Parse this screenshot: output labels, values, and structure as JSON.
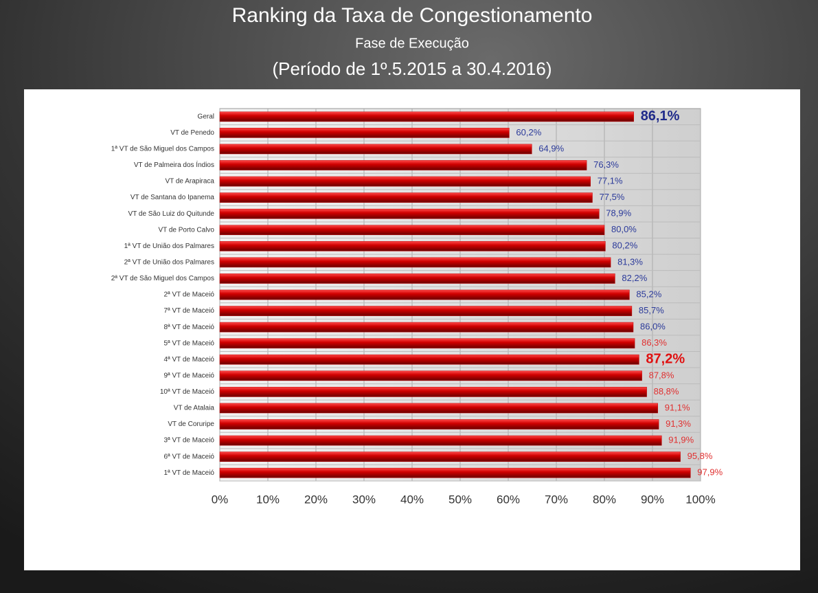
{
  "chart_data": {
    "type": "bar",
    "orientation": "horizontal",
    "title": "Ranking da Taxa de Congestionamento",
    "subtitle": "Fase de Execução",
    "period": "(Período de 1º.5.2015  a  30.4.2016)",
    "categories": [
      "Geral",
      "VT de Penedo",
      "1ª VT de São Miguel dos Campos",
      "VT de Palmeira dos Índios",
      "VT de Arapiraca",
      "VT de Santana do Ipanema",
      "VT de São Luiz do Quitunde",
      "VT de Porto Calvo",
      "1ª VT de União dos Palmares",
      "2ª VT de União dos Palmares",
      "2ª VT de São Miguel dos Campos",
      "2ª VT de Maceió",
      "7ª VT de Maceió",
      "8ª VT de Maceió",
      "5ª VT de Maceió",
      "4ª VT de Maceió",
      "9ª VT de Maceió",
      "10ª VT de Maceió",
      "VT de Atalaia",
      "VT de Coruripe",
      "3ª VT de Maceió",
      "6ª VT de Maceió",
      "1ª VT de Maceió"
    ],
    "values": [
      86.1,
      60.2,
      64.9,
      76.3,
      77.1,
      77.5,
      78.9,
      80.0,
      80.2,
      81.3,
      82.2,
      85.2,
      85.7,
      86.0,
      86.3,
      87.2,
      87.8,
      88.8,
      91.1,
      91.3,
      91.9,
      95.8,
      97.9
    ],
    "value_labels": [
      "86,1%",
      "60,2%",
      "64,9%",
      "76,3%",
      "77,1%",
      "77,5%",
      "78,9%",
      "80,0%",
      "80,2%",
      "81,3%",
      "82,2%",
      "85,2%",
      "85,7%",
      "86,0%",
      "86,3%",
      "87,2%",
      "87,8%",
      "88,8%",
      "91,1%",
      "91,3%",
      "91,9%",
      "95,8%",
      "97,9%"
    ],
    "value_label_colors": [
      "#1f2a8a",
      "#2b3a9a",
      "#2b3a9a",
      "#2b3a9a",
      "#2b3a9a",
      "#2b3a9a",
      "#2b3a9a",
      "#2b3a9a",
      "#2b3a9a",
      "#2b3a9a",
      "#2b3a9a",
      "#2b3a9a",
      "#2b3a9a",
      "#2b3a9a",
      "#e03030",
      "#e01010",
      "#e03030",
      "#e03030",
      "#e03030",
      "#e03030",
      "#e03030",
      "#e03030",
      "#e03030"
    ],
    "value_label_bold": [
      true,
      false,
      false,
      false,
      false,
      false,
      false,
      false,
      false,
      false,
      false,
      false,
      false,
      false,
      false,
      true,
      false,
      false,
      false,
      false,
      false,
      false,
      false
    ],
    "color": "#c00000",
    "xlim": [
      0,
      100
    ],
    "xticks": [
      {
        "value": 0,
        "label": "0%"
      },
      {
        "value": 10,
        "label": "10%"
      },
      {
        "value": 20,
        "label": "20%"
      },
      {
        "value": 30,
        "label": "30%"
      },
      {
        "value": 40,
        "label": "40%"
      },
      {
        "value": 50,
        "label": "50%"
      },
      {
        "value": 60,
        "label": "60%"
      },
      {
        "value": 70,
        "label": "70%"
      },
      {
        "value": 80,
        "label": "80%"
      },
      {
        "value": 90,
        "label": "90%"
      },
      {
        "value": 100,
        "label": "100%"
      }
    ],
    "grid": true
  }
}
